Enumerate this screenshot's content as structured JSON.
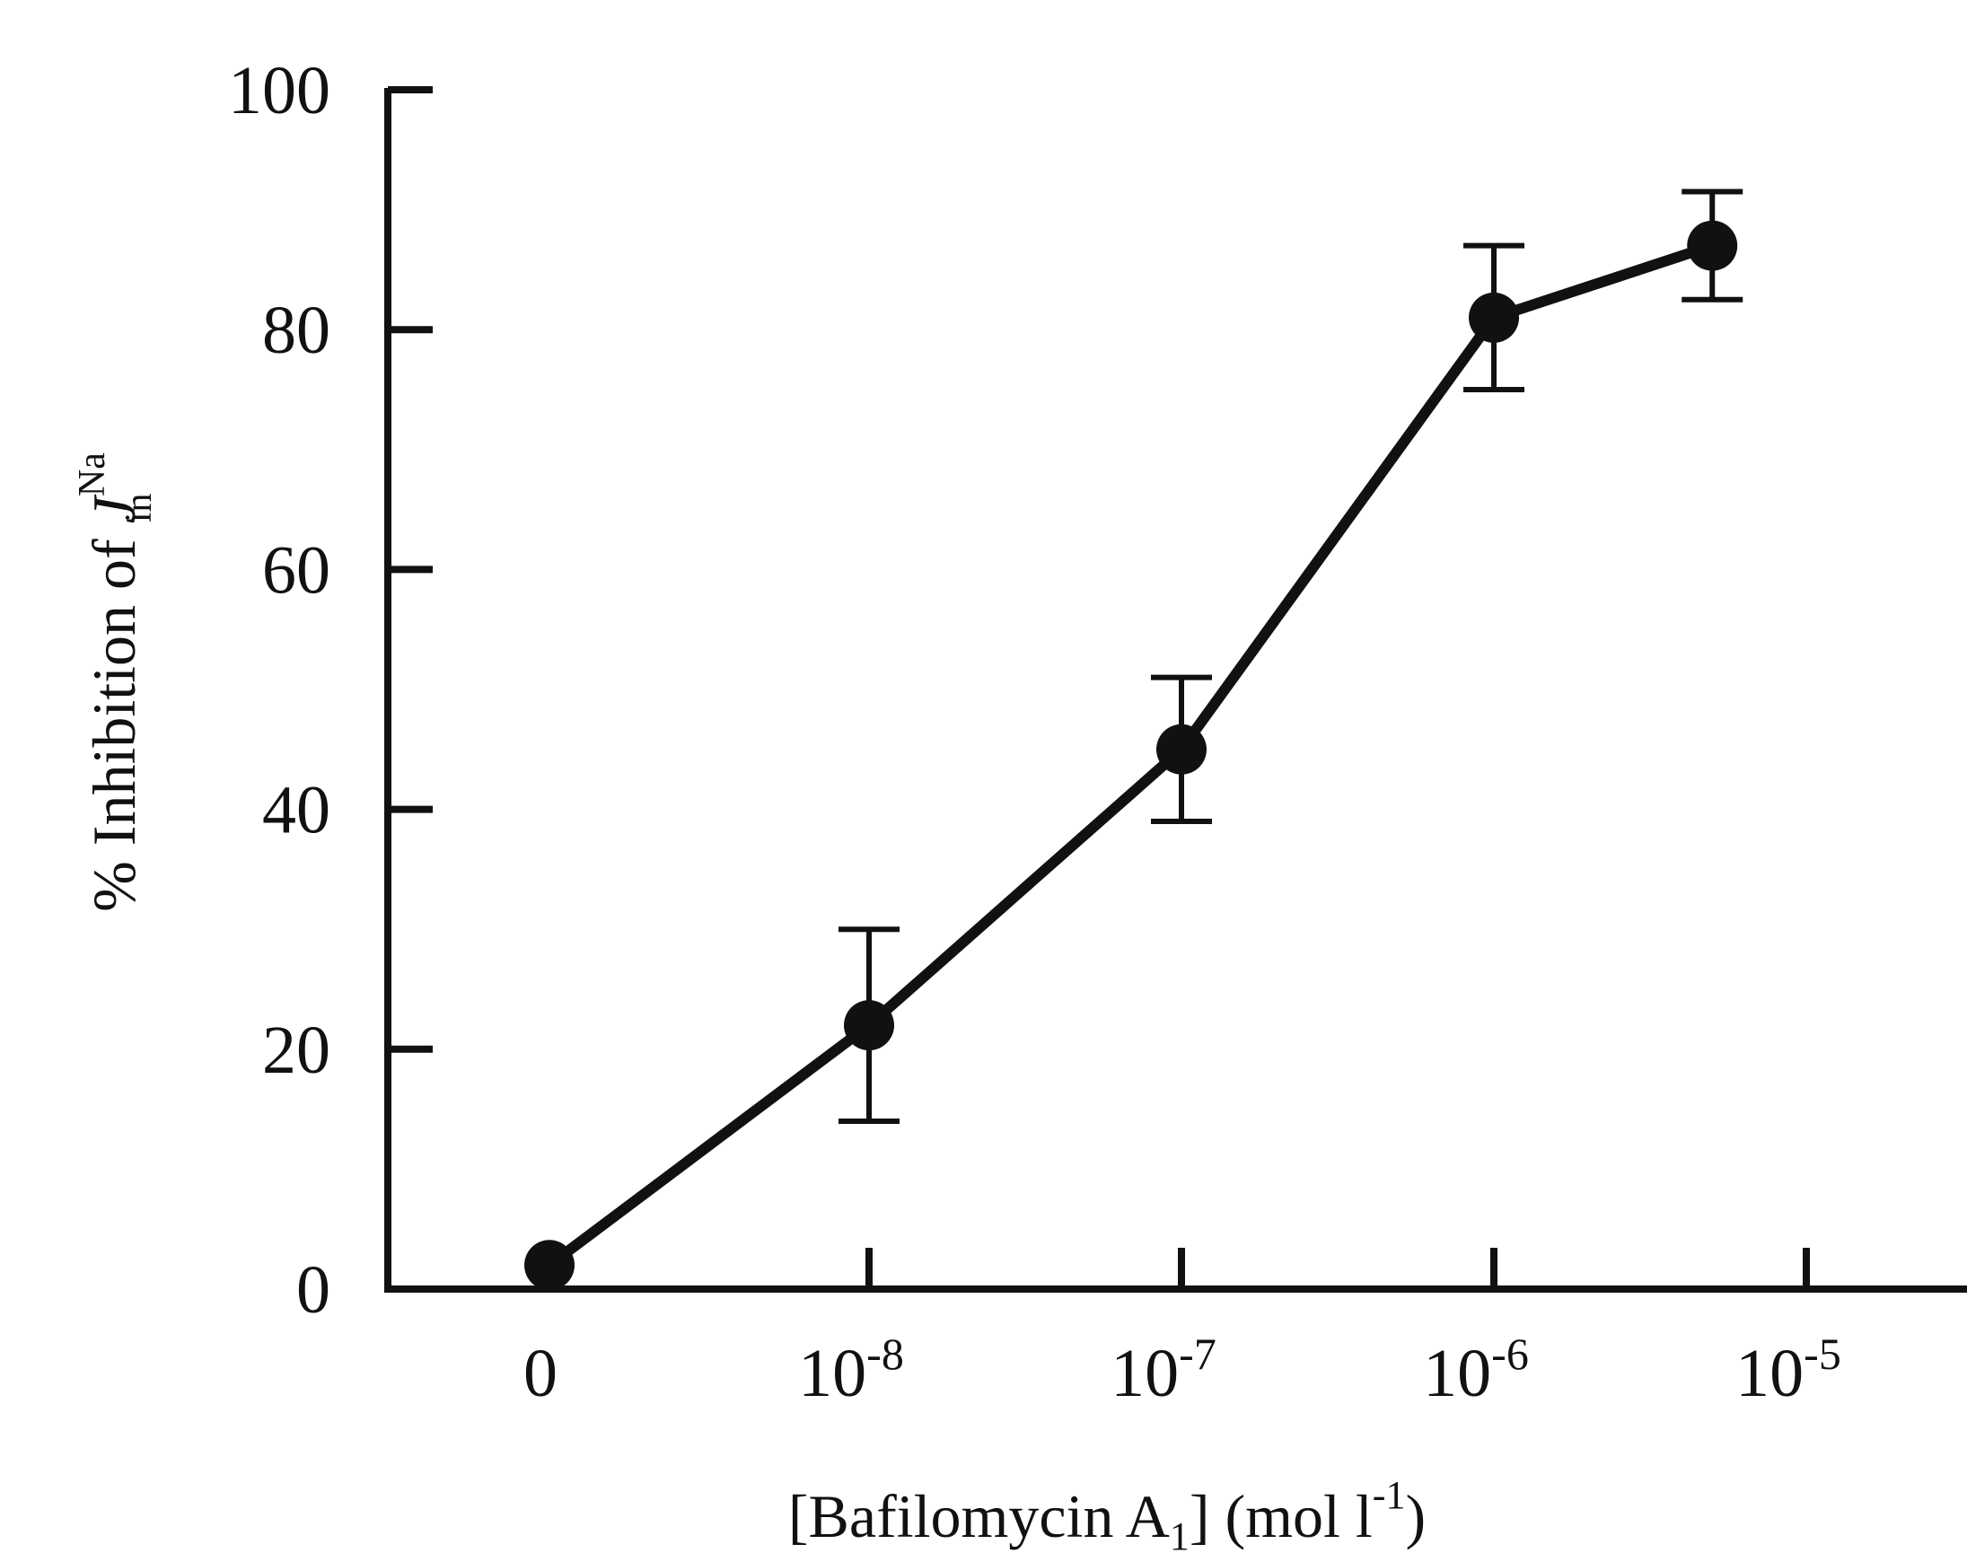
{
  "chart_data": {
    "type": "line",
    "x_scale": "log-with-zero",
    "x": [
      0,
      1e-08,
      1e-07,
      1e-06,
      5e-06
    ],
    "series": [
      {
        "values": [
          2,
          22,
          45,
          81,
          87
        ],
        "errors": [
          0,
          8,
          6,
          6,
          4.5
        ]
      }
    ],
    "ylim": [
      0,
      100
    ],
    "y_ticks": [
      0,
      20,
      40,
      60,
      80,
      100
    ],
    "x_ticks": [
      {
        "value": 0,
        "base": "0",
        "exp": ""
      },
      {
        "value": 1e-08,
        "base": "10",
        "exp": "-8"
      },
      {
        "value": 1e-07,
        "base": "10",
        "exp": "-7"
      },
      {
        "value": 1e-06,
        "base": "10",
        "exp": "-6"
      },
      {
        "value": 1e-05,
        "base": "10",
        "exp": "-5"
      }
    ],
    "xlabel": {
      "prefix": "[Bafilomycin A",
      "sub": "1",
      "middle": "] (mol l",
      "sup": "-1",
      "suffix": ")"
    },
    "ylabel": {
      "prefix": "% Inhibition of ",
      "main": "J",
      "sup": "Na",
      "sub": "in"
    },
    "grid": false,
    "colors": {
      "line": "#111111",
      "marker": "#111111",
      "axis": "#111111"
    }
  }
}
